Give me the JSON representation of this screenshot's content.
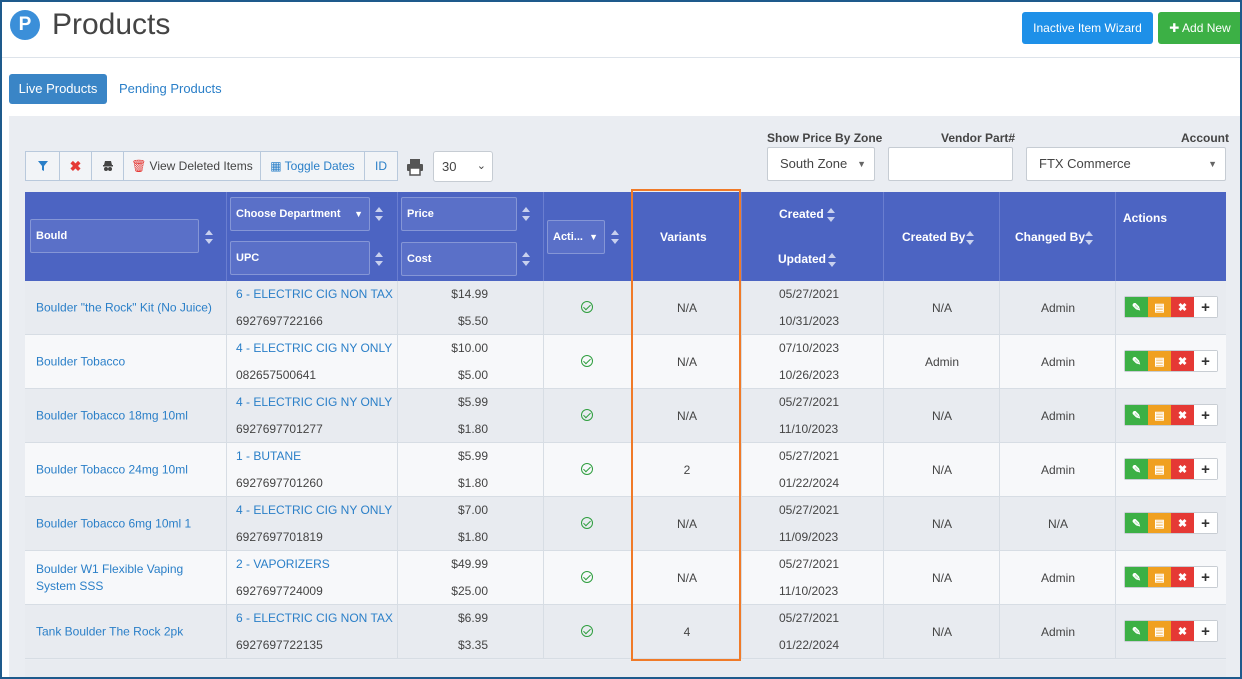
{
  "header": {
    "logo_letter": "P",
    "title": "Products",
    "inactive_wizard_label": "Inactive Item Wizard",
    "add_new_label": "Add New"
  },
  "tabs": [
    {
      "label": "Live Products",
      "active": true
    },
    {
      "label": "Pending Products",
      "active": false
    }
  ],
  "toolbar": {
    "view_deleted_label": "View Deleted Items",
    "toggle_dates_label": "Toggle Dates",
    "id_label": "ID",
    "page_size": "30"
  },
  "filters": {
    "price_zone": {
      "label": "Show Price By Zone",
      "value": "South Zone"
    },
    "vendor_part": {
      "label": "Vendor Part#",
      "value": ""
    },
    "account": {
      "label": "Account",
      "value": "FTX Commerce"
    }
  },
  "table": {
    "headers": {
      "name_filter": "Bould",
      "department": "Choose Department",
      "upc": "UPC",
      "price": "Price",
      "cost": "Cost",
      "active": "Acti...",
      "variants": "Variants",
      "created": "Created",
      "updated": "Updated",
      "created_by": "Created By",
      "changed_by": "Changed By",
      "actions": "Actions"
    },
    "rows": [
      {
        "name": "Boulder \"the Rock\" Kit (No Juice)",
        "department": "6 - ELECTRIC CIG NON TAX",
        "upc": "6927697722166",
        "price": "$14.99",
        "cost": "$5.50",
        "variants": "N/A",
        "created": "05/27/2021",
        "updated": "10/31/2023",
        "created_by": "N/A",
        "changed_by": "Admin"
      },
      {
        "name": "Boulder Tobacco",
        "department": "4 - ELECTRIC CIG NY ONLY",
        "upc": "082657500641",
        "price": "$10.00",
        "cost": "$5.00",
        "variants": "N/A",
        "created": "07/10/2023",
        "updated": "10/26/2023",
        "created_by": "Admin",
        "changed_by": "Admin"
      },
      {
        "name": "Boulder Tobacco 18mg 10ml",
        "department": "4 - ELECTRIC CIG NY ONLY",
        "upc": "6927697701277",
        "price": "$5.99",
        "cost": "$1.80",
        "variants": "N/A",
        "created": "05/27/2021",
        "updated": "11/10/2023",
        "created_by": "N/A",
        "changed_by": "Admin"
      },
      {
        "name": "Boulder Tobacco 24mg 10ml",
        "department": "1 - BUTANE",
        "upc": "6927697701260",
        "price": "$5.99",
        "cost": "$1.80",
        "variants": "2",
        "created": "05/27/2021",
        "updated": "01/22/2024",
        "created_by": "N/A",
        "changed_by": "Admin"
      },
      {
        "name": "Boulder Tobacco 6mg 10ml 1",
        "department": "4 - ELECTRIC CIG NY ONLY",
        "upc": "6927697701819",
        "price": "$7.00",
        "cost": "$1.80",
        "variants": "N/A",
        "created": "05/27/2021",
        "updated": "11/09/2023",
        "created_by": "N/A",
        "changed_by": "N/A"
      },
      {
        "name": "Boulder W1 Flexible Vaping System SSS",
        "department": "2 - VAPORIZERS",
        "upc": "6927697724009",
        "price": "$49.99",
        "cost": "$25.00",
        "variants": "N/A",
        "created": "05/27/2021",
        "updated": "11/10/2023",
        "created_by": "N/A",
        "changed_by": "Admin"
      },
      {
        "name": "Tank Boulder The Rock 2pk",
        "department": "6 - ELECTRIC CIG NON TAX",
        "upc": "6927697722135",
        "price": "$6.99",
        "cost": "$3.35",
        "variants": "4",
        "created": "05/27/2021",
        "updated": "01/22/2024",
        "created_by": "N/A",
        "changed_by": "Admin"
      }
    ]
  },
  "colors": {
    "header_bg": "#4c64c2",
    "link": "#2a7fc8",
    "highlight": "#f07a28",
    "primary_button": "#1e90e8",
    "add_button": "#3cb045"
  },
  "icons": [
    "filter-icon",
    "clear-filter-icon",
    "spy-icon",
    "trash-icon",
    "calendar-icon",
    "print-icon",
    "check-circle-icon",
    "pencil-icon",
    "document-icon",
    "delete-icon",
    "plus-icon"
  ]
}
